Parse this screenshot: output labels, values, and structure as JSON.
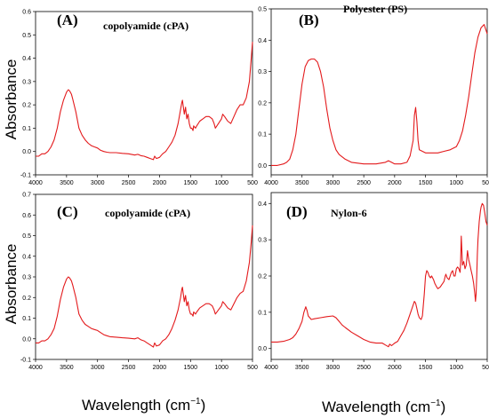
{
  "figure": {
    "ylabel": "Absorbance",
    "xlabel_main": "Wavelength (cm",
    "xlabel_sup": "−1",
    "xlabel_close": ")"
  },
  "chart_data": [
    {
      "type": "line",
      "label": "(A)",
      "title": "copolyamide (cPA)",
      "xlabel": "",
      "ylabel": "Absorbance",
      "xlim": [
        4000,
        500
      ],
      "ylim": [
        -0.1,
        0.6
      ],
      "x_ticks": [
        4000,
        3500,
        3000,
        2500,
        2000,
        1500,
        1000,
        500
      ],
      "y_ticks": [
        -0.1,
        0.0,
        0.1,
        0.2,
        0.3,
        0.4,
        0.5,
        0.6
      ],
      "color": "#e31a1c",
      "series": [
        {
          "x": [
            4000,
            3950,
            3900,
            3850,
            3800,
            3750,
            3700,
            3650,
            3600,
            3550,
            3500,
            3470,
            3450,
            3420,
            3400,
            3350,
            3300,
            3250,
            3200,
            3150,
            3100,
            3050,
            3000,
            2950,
            2900,
            2850,
            2800,
            2700,
            2600,
            2500,
            2400,
            2350,
            2300,
            2250,
            2200,
            2150,
            2100,
            2080,
            2050,
            2000,
            1950,
            1900,
            1850,
            1800,
            1750,
            1700,
            1680,
            1660,
            1640,
            1630,
            1600,
            1580,
            1560,
            1540,
            1520,
            1500,
            1480,
            1460,
            1450,
            1420,
            1400,
            1350,
            1300,
            1250,
            1200,
            1150,
            1120,
            1100,
            1050,
            1000,
            980,
            950,
            900,
            850,
            800,
            750,
            700,
            650,
            600,
            550,
            520,
            500
          ],
          "y": [
            -0.02,
            -0.02,
            -0.01,
            -0.01,
            0.0,
            0.02,
            0.05,
            0.1,
            0.17,
            0.22,
            0.255,
            0.265,
            0.26,
            0.245,
            0.225,
            0.17,
            0.1,
            0.07,
            0.05,
            0.035,
            0.025,
            0.02,
            0.015,
            0.005,
            0.0,
            -0.003,
            -0.005,
            -0.005,
            -0.008,
            -0.01,
            -0.015,
            -0.012,
            -0.018,
            -0.02,
            -0.025,
            -0.03,
            -0.035,
            -0.02,
            -0.03,
            -0.025,
            -0.01,
            0.0,
            0.02,
            0.04,
            0.07,
            0.12,
            0.15,
            0.18,
            0.21,
            0.22,
            0.16,
            0.19,
            0.14,
            0.16,
            0.12,
            0.1,
            0.1,
            0.09,
            0.11,
            0.1,
            0.11,
            0.13,
            0.14,
            0.15,
            0.15,
            0.14,
            0.12,
            0.1,
            0.12,
            0.14,
            0.16,
            0.15,
            0.13,
            0.12,
            0.15,
            0.18,
            0.2,
            0.2,
            0.23,
            0.3,
            0.4,
            0.47
          ]
        }
      ]
    },
    {
      "type": "line",
      "label": "(B)",
      "title": "Polyester (PS)",
      "xlabel": "",
      "ylabel": "",
      "xlim": [
        4000,
        500
      ],
      "ylim": [
        -0.03,
        0.5
      ],
      "x_ticks": [
        4000,
        3500,
        3000,
        2500,
        2000,
        1500,
        1000,
        500
      ],
      "y_ticks": [
        0.0,
        0.1,
        0.2,
        0.3,
        0.4,
        0.5
      ],
      "color": "#e31a1c",
      "series": [
        {
          "x": [
            4000,
            3900,
            3800,
            3750,
            3700,
            3650,
            3600,
            3550,
            3500,
            3450,
            3400,
            3350,
            3300,
            3250,
            3200,
            3150,
            3100,
            3050,
            3000,
            2950,
            2900,
            2800,
            2700,
            2500,
            2300,
            2150,
            2100,
            2050,
            2000,
            1900,
            1800,
            1750,
            1700,
            1680,
            1660,
            1640,
            1620,
            1600,
            1550,
            1500,
            1400,
            1300,
            1200,
            1100,
            1000,
            950,
            900,
            850,
            800,
            750,
            700,
            650,
            600,
            550,
            500
          ],
          "y": [
            0.0,
            0.0,
            0.005,
            0.01,
            0.02,
            0.05,
            0.1,
            0.18,
            0.26,
            0.315,
            0.335,
            0.34,
            0.34,
            0.33,
            0.3,
            0.25,
            0.18,
            0.12,
            0.08,
            0.05,
            0.035,
            0.02,
            0.01,
            0.005,
            0.005,
            0.01,
            0.015,
            0.01,
            0.005,
            0.005,
            0.01,
            0.03,
            0.08,
            0.16,
            0.185,
            0.14,
            0.08,
            0.05,
            0.045,
            0.04,
            0.04,
            0.04,
            0.045,
            0.05,
            0.06,
            0.08,
            0.11,
            0.16,
            0.22,
            0.29,
            0.36,
            0.41,
            0.44,
            0.45,
            0.42
          ]
        }
      ]
    },
    {
      "type": "line",
      "label": "(C)",
      "title": "copolyamide (cPA)",
      "xlabel": "",
      "ylabel": "Absorbance",
      "xlim": [
        4000,
        500
      ],
      "ylim": [
        -0.1,
        0.7
      ],
      "x_ticks": [
        4000,
        3500,
        3000,
        2500,
        2000,
        1500,
        1000,
        500
      ],
      "y_ticks": [
        -0.1,
        0.0,
        0.1,
        0.2,
        0.3,
        0.4,
        0.5,
        0.6,
        0.7
      ],
      "color": "#e31a1c",
      "series": [
        {
          "x": [
            4000,
            3950,
            3900,
            3850,
            3800,
            3750,
            3700,
            3650,
            3600,
            3550,
            3500,
            3470,
            3450,
            3420,
            3400,
            3350,
            3300,
            3250,
            3200,
            3150,
            3100,
            3050,
            3000,
            2950,
            2900,
            2850,
            2800,
            2700,
            2600,
            2500,
            2400,
            2350,
            2300,
            2250,
            2200,
            2150,
            2100,
            2080,
            2050,
            2000,
            1950,
            1900,
            1850,
            1800,
            1750,
            1700,
            1680,
            1660,
            1640,
            1630,
            1600,
            1580,
            1560,
            1540,
            1520,
            1500,
            1480,
            1460,
            1450,
            1420,
            1400,
            1350,
            1300,
            1250,
            1200,
            1150,
            1120,
            1100,
            1050,
            1000,
            980,
            950,
            900,
            850,
            800,
            750,
            700,
            650,
            600,
            550,
            520,
            500
          ],
          "y": [
            -0.02,
            -0.02,
            -0.01,
            -0.01,
            0.0,
            0.02,
            0.05,
            0.11,
            0.19,
            0.25,
            0.29,
            0.3,
            0.295,
            0.28,
            0.26,
            0.2,
            0.12,
            0.09,
            0.07,
            0.06,
            0.05,
            0.045,
            0.04,
            0.03,
            0.02,
            0.015,
            0.01,
            0.008,
            0.005,
            0.003,
            0.0,
            0.005,
            -0.005,
            -0.01,
            -0.02,
            -0.03,
            -0.04,
            -0.02,
            -0.035,
            -0.03,
            -0.01,
            0.0,
            0.02,
            0.05,
            0.09,
            0.14,
            0.17,
            0.2,
            0.24,
            0.25,
            0.18,
            0.21,
            0.16,
            0.18,
            0.14,
            0.12,
            0.12,
            0.11,
            0.13,
            0.12,
            0.13,
            0.15,
            0.16,
            0.17,
            0.17,
            0.16,
            0.14,
            0.12,
            0.14,
            0.16,
            0.18,
            0.17,
            0.15,
            0.14,
            0.17,
            0.2,
            0.22,
            0.23,
            0.28,
            0.37,
            0.47,
            0.55
          ]
        }
      ]
    },
    {
      "type": "line",
      "label": "(D)",
      "title": "Nylon-6",
      "xlabel": "",
      "ylabel": "",
      "xlim": [
        4000,
        500
      ],
      "ylim": [
        -0.03,
        0.43
      ],
      "x_ticks": [
        4000,
        3500,
        3000,
        2500,
        2000,
        1500,
        1000,
        500
      ],
      "y_ticks": [
        0.0,
        0.1,
        0.2,
        0.3,
        0.4
      ],
      "color": "#e31a1c",
      "series": [
        {
          "x": [
            4000,
            3900,
            3800,
            3700,
            3650,
            3600,
            3550,
            3500,
            3470,
            3440,
            3420,
            3400,
            3350,
            3300,
            3200,
            3100,
            3000,
            2950,
            2900,
            2850,
            2800,
            2700,
            2600,
            2500,
            2400,
            2300,
            2200,
            2150,
            2100,
            2080,
            2050,
            2000,
            1950,
            1900,
            1850,
            1800,
            1750,
            1700,
            1680,
            1660,
            1640,
            1620,
            1600,
            1570,
            1550,
            1540,
            1520,
            1500,
            1480,
            1460,
            1440,
            1420,
            1400,
            1370,
            1350,
            1320,
            1300,
            1260,
            1240,
            1220,
            1200,
            1180,
            1170,
            1150,
            1120,
            1100,
            1080,
            1060,
            1040,
            1020,
            1000,
            980,
            960,
            940,
            930,
            920,
            900,
            880,
            860,
            840,
            820,
            800,
            780,
            760,
            740,
            720,
            700,
            690,
            680,
            670,
            660,
            650,
            630,
            610,
            600,
            580,
            560,
            540,
            520,
            500
          ],
          "y": [
            0.018,
            0.018,
            0.02,
            0.025,
            0.03,
            0.04,
            0.055,
            0.075,
            0.1,
            0.115,
            0.105,
            0.09,
            0.08,
            0.082,
            0.085,
            0.088,
            0.09,
            0.085,
            0.075,
            0.065,
            0.058,
            0.045,
            0.035,
            0.025,
            0.018,
            0.015,
            0.015,
            0.01,
            0.005,
            0.012,
            0.008,
            0.015,
            0.02,
            0.035,
            0.05,
            0.07,
            0.095,
            0.12,
            0.13,
            0.125,
            0.11,
            0.095,
            0.085,
            0.08,
            0.09,
            0.11,
            0.15,
            0.2,
            0.215,
            0.21,
            0.2,
            0.195,
            0.2,
            0.19,
            0.18,
            0.17,
            0.165,
            0.17,
            0.175,
            0.18,
            0.185,
            0.2,
            0.205,
            0.195,
            0.19,
            0.2,
            0.21,
            0.215,
            0.2,
            0.2,
            0.22,
            0.225,
            0.22,
            0.21,
            0.24,
            0.31,
            0.23,
            0.24,
            0.22,
            0.23,
            0.27,
            0.245,
            0.23,
            0.215,
            0.2,
            0.18,
            0.15,
            0.13,
            0.15,
            0.2,
            0.26,
            0.3,
            0.35,
            0.38,
            0.39,
            0.4,
            0.395,
            0.375,
            0.35,
            0.34
          ]
        }
      ]
    }
  ]
}
